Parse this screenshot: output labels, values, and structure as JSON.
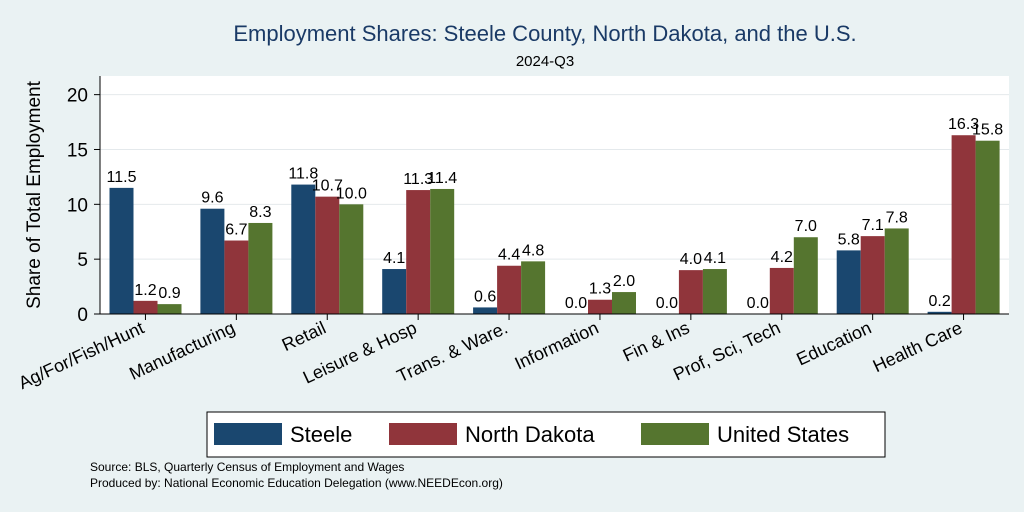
{
  "chart_data": {
    "type": "bar",
    "title": "Employment Shares: Steele County, North Dakota, and the U.S.",
    "subtitle": "2024-Q3",
    "xlabel": "",
    "ylabel": "Share of Total Employment",
    "ylim": [
      0,
      21.7
    ],
    "yticks": [
      "0",
      "5",
      "10",
      "15",
      "20"
    ],
    "categories": [
      "Ag/For/Fish/Hunt",
      "Manufacturing",
      "Retail",
      "Leisure & Hosp",
      "Trans. & Ware.",
      "Information",
      "Fin & Ins",
      "Prof, Sci, Tech",
      "Education",
      "Health Care"
    ],
    "series": [
      {
        "name": "Steele",
        "color": "#1a476f",
        "values": [
          11.5,
          9.6,
          11.8,
          4.1,
          0.6,
          0.0,
          0.0,
          0.0,
          5.8,
          0.2
        ]
      },
      {
        "name": "North Dakota",
        "color": "#90353b",
        "values": [
          1.2,
          6.7,
          10.7,
          11.3,
          4.4,
          1.3,
          4.0,
          4.2,
          7.1,
          16.3
        ]
      },
      {
        "name": "United States",
        "color": "#55752f",
        "values": [
          0.9,
          8.3,
          10.0,
          11.4,
          4.8,
          2.0,
          4.1,
          7.0,
          7.8,
          15.8
        ]
      }
    ],
    "data_labels": [
      [
        "11.5",
        "9.6",
        "11.8",
        "4.1",
        "0.6",
        "0.0",
        "0.0",
        "0.0",
        "5.8",
        "0.2"
      ],
      [
        "1.2",
        "6.7",
        "10.7",
        "11.3",
        "4.4",
        "1.3",
        "4.0",
        "4.2",
        "7.1",
        "16.3"
      ],
      [
        "0.9",
        "8.3",
        "10.0",
        "11.4",
        "4.8",
        "2.0",
        "4.1",
        "7.0",
        "7.8",
        "15.8"
      ]
    ],
    "grid": true,
    "legend_position": "bottom"
  },
  "notes": {
    "source": "Source: BLS, Quarterly Census of Employment and Wages",
    "produced": "Produced by: National Economic Education Delegation (www.NEEDEcon.org)"
  },
  "colors": {
    "background": "#eaf2f3",
    "plot_background": "#ffffff",
    "title": "#1a3a66"
  }
}
